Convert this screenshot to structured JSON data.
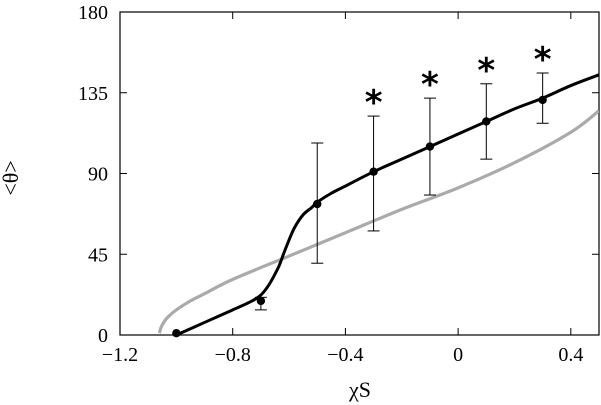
{
  "chart_data": {
    "type": "line",
    "xlabel": "χS",
    "ylabel": "<θ>",
    "xlim": [
      -1.2,
      0.5
    ],
    "ylim": [
      0,
      180
    ],
    "x_ticks": [
      -1.2,
      -0.8,
      -0.4,
      0,
      0.4
    ],
    "x_tick_labels": [
      "−1.2",
      "−0.8",
      "−0.4",
      "0",
      "0.4"
    ],
    "y_ticks": [
      0,
      45,
      90,
      135,
      180
    ],
    "y_tick_labels": [
      "0",
      "45",
      "90",
      "135",
      "180"
    ],
    "grid": false,
    "series": [
      {
        "style": "black-line",
        "color": "#000000",
        "x": [
          -1.0,
          -0.9,
          -0.8,
          -0.72,
          -0.68,
          -0.64,
          -0.62,
          -0.6,
          -0.58,
          -0.55,
          -0.52,
          -0.5,
          -0.45,
          -0.4,
          -0.3,
          -0.2,
          -0.1,
          0.0,
          0.1,
          0.2,
          0.3,
          0.4,
          0.5
        ],
        "y": [
          0,
          7,
          14,
          20,
          26,
          37,
          45,
          53,
          60,
          67,
          71,
          74,
          79,
          83,
          91,
          98,
          105,
          112,
          119,
          126,
          132,
          139,
          145
        ]
      },
      {
        "style": "gray-line",
        "color": "#aaaaaa",
        "x": [
          -1.06,
          -1.055,
          -1.045,
          -1.03,
          -1.0,
          -0.95,
          -0.9,
          -0.8,
          -0.6,
          -0.4,
          -0.2,
          0.0,
          0.2,
          0.4,
          0.5
        ],
        "y": [
          1,
          4,
          7,
          10,
          14,
          19,
          23,
          31,
          44,
          57,
          70,
          82,
          96,
          113,
          125
        ]
      },
      {
        "style": "points",
        "color": "#000000",
        "x": [
          -1.0,
          -0.7,
          -0.5,
          -0.3,
          -0.1,
          0.1,
          0.3
        ],
        "y": [
          1,
          19,
          73,
          91,
          105,
          119,
          131
        ],
        "err_low": [
          1,
          14,
          40,
          58,
          78,
          98,
          118
        ],
        "err_high": [
          1,
          21,
          107,
          122,
          132,
          140,
          146
        ],
        "significant": [
          false,
          false,
          false,
          true,
          true,
          true,
          true
        ]
      }
    ],
    "annotations": [
      {
        "text": "*",
        "x": -0.3
      },
      {
        "text": "*",
        "x": -0.1
      },
      {
        "text": "*",
        "x": 0.1
      },
      {
        "text": "*",
        "x": 0.3
      }
    ]
  }
}
